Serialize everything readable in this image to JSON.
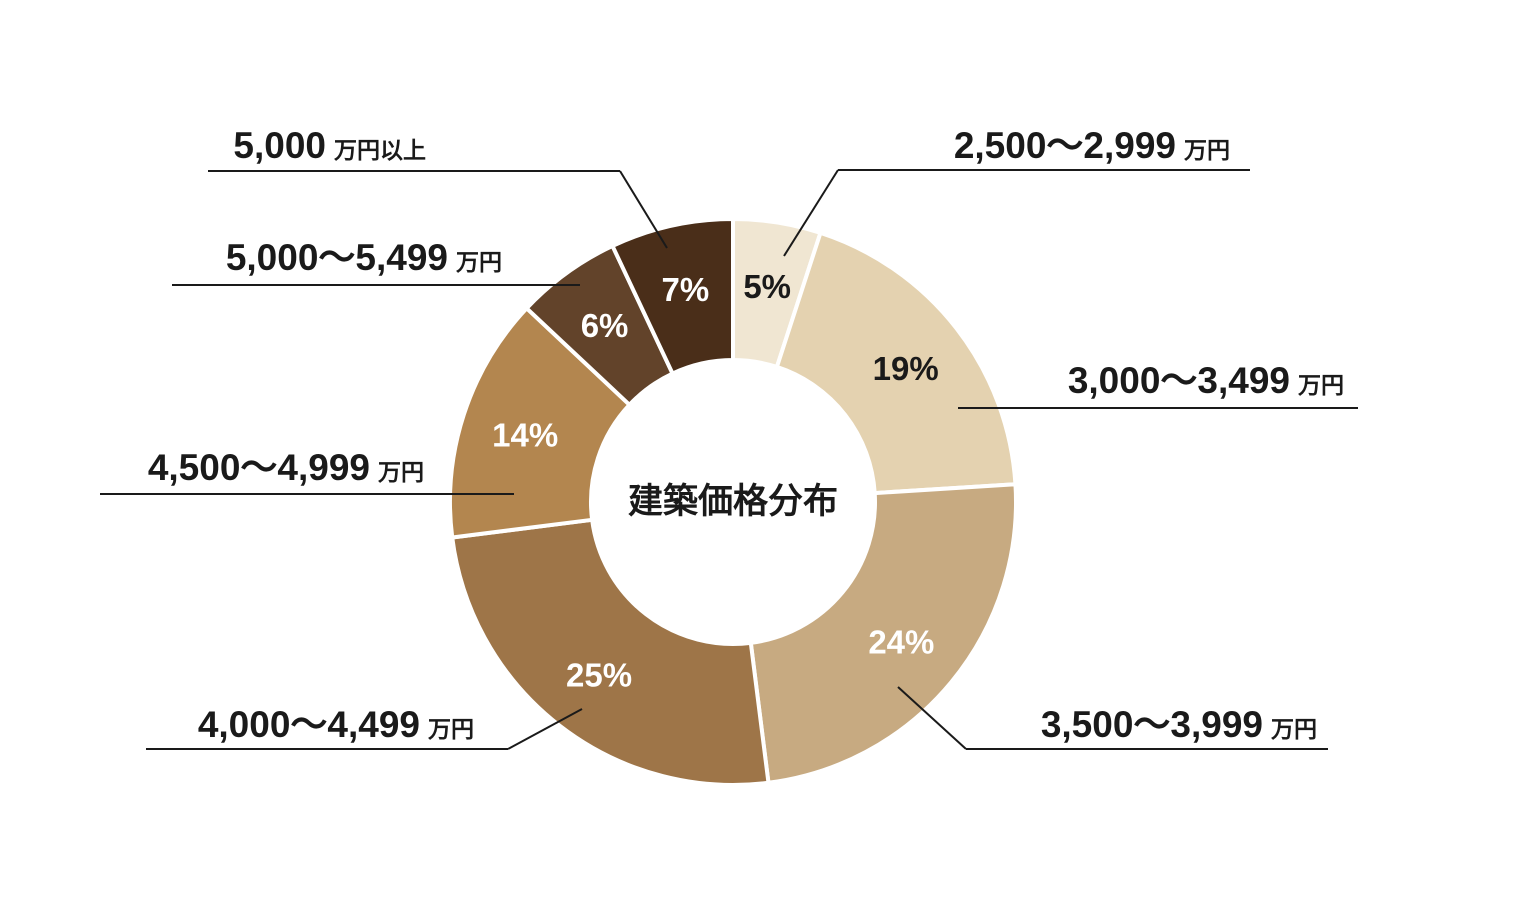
{
  "chart_data": {
    "type": "pie",
    "title": "建築価格分布",
    "unit": "万円",
    "categories": [
      "2,500〜2,999",
      "3,000〜3,499",
      "3,500〜3,999",
      "4,000〜4,499",
      "4,500〜4,999",
      "5,000〜5,499",
      "5,000"
    ],
    "category_units": [
      "万円",
      "万円",
      "万円",
      "万円",
      "万円",
      "万円",
      "万円以上"
    ],
    "values": [
      5,
      19,
      24,
      25,
      14,
      6,
      7
    ],
    "value_labels": [
      "5%",
      "19%",
      "24%",
      "25%",
      "14%",
      "6%",
      "7%"
    ],
    "colors": [
      "#f0e6d2",
      "#e4d2b0",
      "#c7aa81",
      "#9e7548",
      "#b3864f",
      "#62432a",
      "#4a2e19"
    ],
    "label_colors": [
      "#1a1a1a",
      "#1a1a1a",
      "#ffffff",
      "#ffffff",
      "#ffffff",
      "#ffffff",
      "#ffffff"
    ],
    "start_angle": "top",
    "direction": "clockwise",
    "hole": "donut"
  }
}
